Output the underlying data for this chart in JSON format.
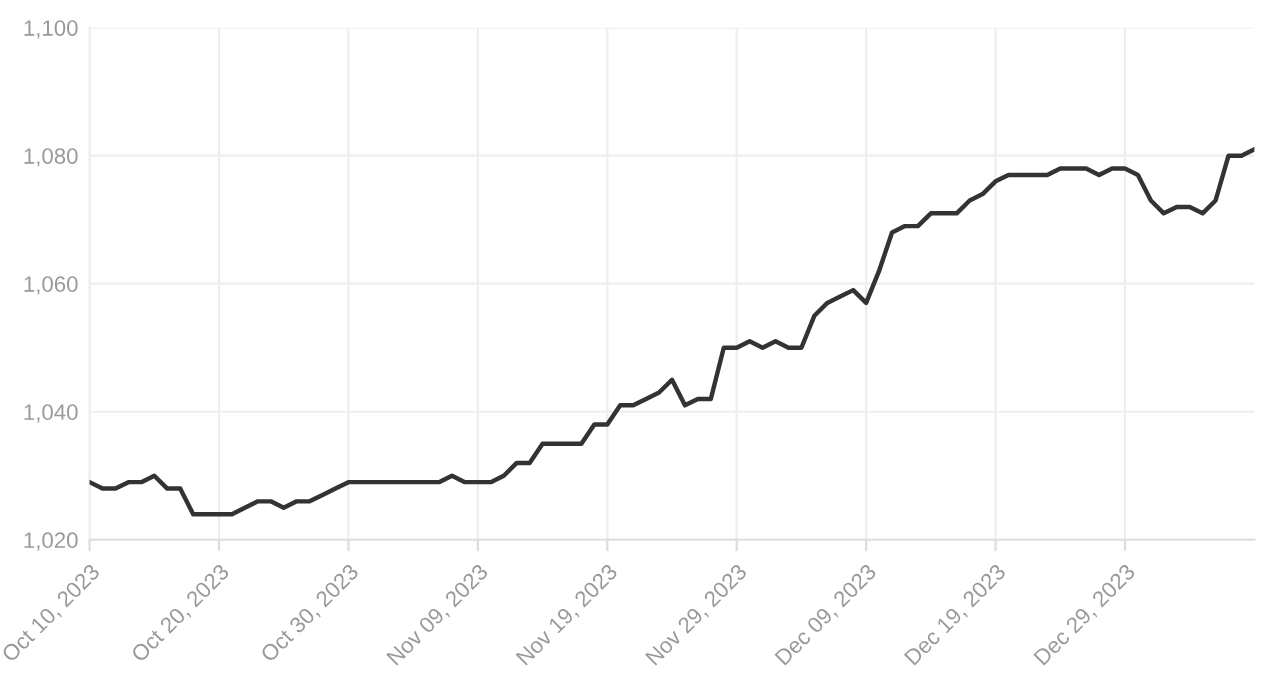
{
  "chart_data": {
    "type": "line",
    "x": [
      "2023-10-10",
      "2023-10-11",
      "2023-10-12",
      "2023-10-13",
      "2023-10-14",
      "2023-10-15",
      "2023-10-16",
      "2023-10-17",
      "2023-10-18",
      "2023-10-19",
      "2023-10-20",
      "2023-10-21",
      "2023-10-22",
      "2023-10-23",
      "2023-10-24",
      "2023-10-25",
      "2023-10-26",
      "2023-10-27",
      "2023-10-28",
      "2023-10-29",
      "2023-10-30",
      "2023-10-31",
      "2023-11-01",
      "2023-11-02",
      "2023-11-03",
      "2023-11-04",
      "2023-11-05",
      "2023-11-06",
      "2023-11-07",
      "2023-11-08",
      "2023-11-09",
      "2023-11-10",
      "2023-11-11",
      "2023-11-12",
      "2023-11-13",
      "2023-11-14",
      "2023-11-15",
      "2023-11-16",
      "2023-11-17",
      "2023-11-18",
      "2023-11-19",
      "2023-11-20",
      "2023-11-21",
      "2023-11-22",
      "2023-11-23",
      "2023-11-24",
      "2023-11-25",
      "2023-11-26",
      "2023-11-27",
      "2023-11-28",
      "2023-11-29",
      "2023-11-30",
      "2023-12-01",
      "2023-12-02",
      "2023-12-03",
      "2023-12-04",
      "2023-12-05",
      "2023-12-06",
      "2023-12-07",
      "2023-12-08",
      "2023-12-09",
      "2023-12-10",
      "2023-12-11",
      "2023-12-12",
      "2023-12-13",
      "2023-12-14",
      "2023-12-15",
      "2023-12-16",
      "2023-12-17",
      "2023-12-18",
      "2023-12-19",
      "2023-12-20",
      "2023-12-21",
      "2023-12-22",
      "2023-12-23",
      "2023-12-24",
      "2023-12-25",
      "2023-12-26",
      "2023-12-27",
      "2023-12-28",
      "2023-12-29",
      "2023-12-30",
      "2023-12-31",
      "2024-01-01",
      "2024-01-02",
      "2024-01-03",
      "2024-01-04",
      "2024-01-05",
      "2024-01-06",
      "2024-01-07",
      "2024-01-08"
    ],
    "series": [
      {
        "color": "#333333",
        "values": [
          1029,
          1028,
          1028,
          1029,
          1029,
          1030,
          1028,
          1028,
          1024,
          1024,
          1024,
          1024,
          1025,
          1026,
          1026,
          1025,
          1026,
          1026,
          1027,
          1028,
          1029,
          1029,
          1029,
          1029,
          1029,
          1029,
          1029,
          1029,
          1030,
          1029,
          1029,
          1029,
          1030,
          1032,
          1032,
          1035,
          1035,
          1035,
          1035,
          1038,
          1038,
          1041,
          1041,
          1042,
          1043,
          1045,
          1041,
          1042,
          1042,
          1050,
          1050,
          1051,
          1050,
          1051,
          1050,
          1050,
          1055,
          1057,
          1058,
          1059,
          1057,
          1062,
          1068,
          1069,
          1069,
          1071,
          1071,
          1071,
          1073,
          1074,
          1076,
          1077,
          1077,
          1077,
          1077,
          1078,
          1078,
          1078,
          1077,
          1078,
          1078,
          1077,
          1073,
          1071,
          1072,
          1072,
          1071,
          1073,
          1080,
          1080,
          1081
        ]
      }
    ],
    "xlim": [
      "2023-10-10",
      "2024-01-08"
    ],
    "xticks": [
      {
        "value": "2023-10-10",
        "label": "Oct 10, 2023"
      },
      {
        "value": "2023-10-20",
        "label": "Oct 20, 2023"
      },
      {
        "value": "2023-10-30",
        "label": "Oct 30, 2023"
      },
      {
        "value": "2023-11-09",
        "label": "Nov 09, 2023"
      },
      {
        "value": "2023-11-19",
        "label": "Nov 19, 2023"
      },
      {
        "value": "2023-11-29",
        "label": "Nov 29, 2023"
      },
      {
        "value": "2023-12-09",
        "label": "Dec 09, 2023"
      },
      {
        "value": "2023-12-19",
        "label": "Dec 19, 2023"
      },
      {
        "value": "2023-12-29",
        "label": "Dec 29, 2023"
      }
    ],
    "ylim": [
      1020,
      1100
    ],
    "yticks": [
      {
        "value": 1020,
        "label": "1,020"
      },
      {
        "value": 1040,
        "label": "1,040"
      },
      {
        "value": 1060,
        "label": "1,060"
      },
      {
        "value": 1080,
        "label": "1,080"
      },
      {
        "value": 1100,
        "label": "1,100"
      }
    ],
    "grid": true,
    "marker": "none",
    "line_style": "solid"
  }
}
